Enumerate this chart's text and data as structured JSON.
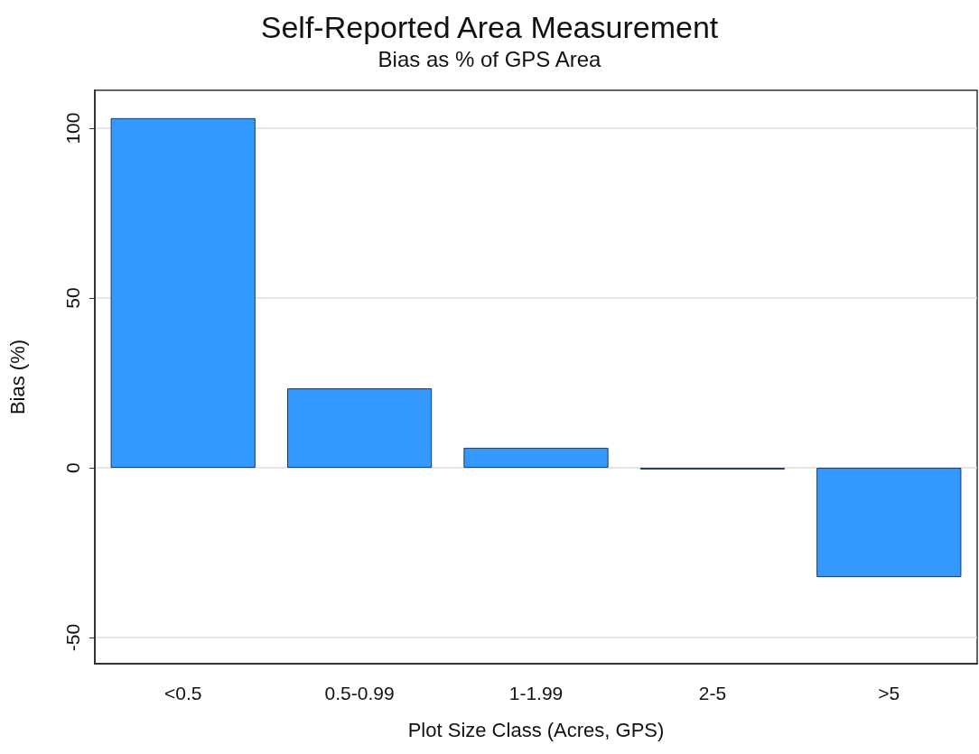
{
  "chart_data": {
    "type": "bar",
    "title": "Self-Reported Area Measurement",
    "subtitle": "Bias as % of GPS Area",
    "xlabel": "Plot Size Class (Acres, GPS)",
    "ylabel": "Bias (%)",
    "categories": [
      "<0.5",
      "0.5-0.99",
      "1-1.99",
      "2-5",
      ">5"
    ],
    "values": [
      103,
      23.4,
      5.9,
      -0.5,
      -32.2
    ],
    "color": "#3399ff",
    "ylim": [
      -57.7,
      111.2
    ],
    "yticks": [
      -50,
      0,
      50,
      100
    ],
    "grid": "y"
  }
}
